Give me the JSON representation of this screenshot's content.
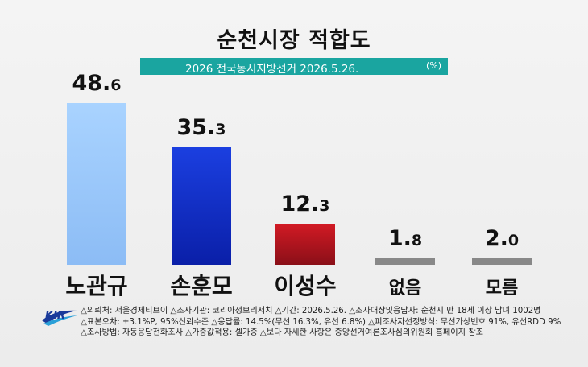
{
  "title": "순천시장 적합도",
  "subtitle": "2026 전국동시지방선거 2026.5.26.",
  "unit": "(%)",
  "logo_text": "KIR",
  "notes": [
    "△의뢰처: 서울경제티브이 △조사기관: 코리아정보리서치 △기간: 2026.5.26. △조사대상및응답자: 순천시 만 18세 이상 남녀 1002명",
    "△표본오차: ±3.1%P, 95%신뢰수준 △응답률: 14.5%(무선 16.3%, 유선 6.8%) △피조사자선정방식: 무선가상번호 91%, 유선RDD 9%",
    "△조사방법: 자동응답전화조사 △가중값적용: 셀가중 △보다 자세한 사항은 중앙선거여론조사심의위원회 홈페이지 참조"
  ],
  "colors": {
    "bar_top": [
      "#a9d3ff",
      "#1b3fe0",
      "#d21a24",
      "#888888",
      "#888888"
    ],
    "bar_bottom": [
      "#8cbcf5",
      "#0a1fa8",
      "#8a0f18",
      "#888888",
      "#888888"
    ],
    "subbar": "#1aa5a0"
  },
  "chart_data": {
    "type": "bar",
    "title": "순천시장 적합도",
    "subtitle": "2026 전국동시지방선거 2026.5.26.",
    "unit": "(%)",
    "categories": [
      "노관규",
      "손훈모",
      "이성수",
      "없음",
      "모름"
    ],
    "values": [
      48.6,
      35.3,
      12.3,
      1.8,
      2.0
    ],
    "labels": [
      {
        "int": "48.",
        "dec": "6"
      },
      {
        "int": "35.",
        "dec": "3"
      },
      {
        "int": "12.",
        "dec": "3"
      },
      {
        "int": "1.",
        "dec": "8"
      },
      {
        "int": "2.",
        "dec": "0"
      }
    ],
    "ylim": [
      0,
      48.6
    ]
  }
}
